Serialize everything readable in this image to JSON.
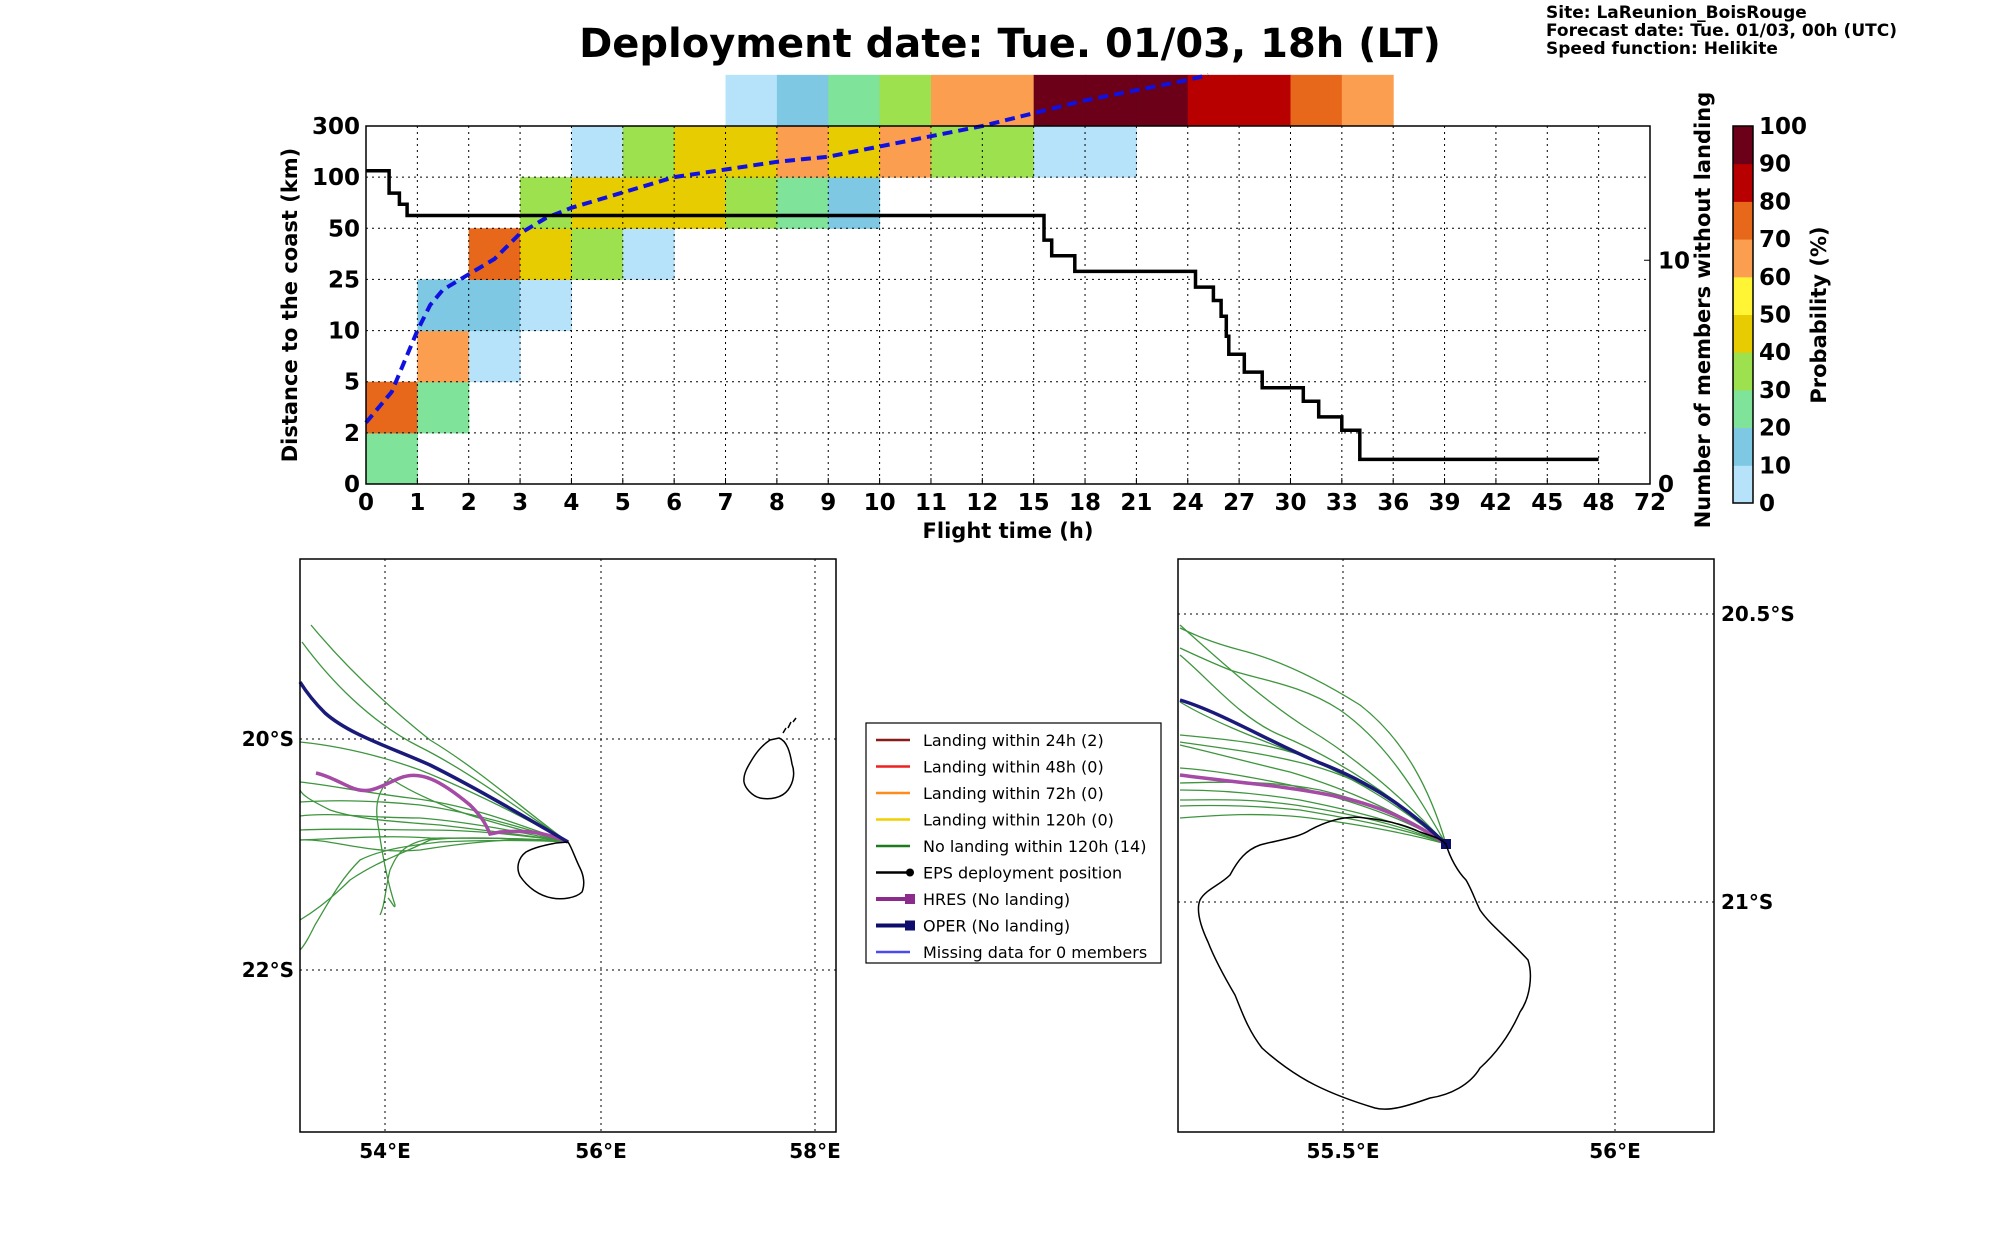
{
  "title": "Deployment date: Tue. 01/03, 18h (LT)",
  "info": [
    "Site: LaReunion_BoisRouge",
    "Forecast date: Tue. 01/03, 00h (UTC)",
    "Speed function: Helikite"
  ],
  "colors": {
    "bins": [
      "#b6e3f9",
      "#7ec8e3",
      "#7fe39a",
      "#9de24e",
      "#e6cc00",
      "#fff535",
      "#fb9e4f",
      "#e8681b",
      "#b80000",
      "#6b0018"
    ],
    "median": "#1010e0",
    "members": "#000000",
    "ens": "#2a8a2a",
    "hres": "#a54aa5",
    "oper": "#1a1a7a"
  },
  "chart_data": [
    {
      "type": "heatmap",
      "x_tick_labels": [
        "0",
        "1",
        "2",
        "3",
        "4",
        "5",
        "6",
        "7",
        "8",
        "9",
        "10",
        "11",
        "12",
        "15",
        "18",
        "21",
        "24",
        "27",
        "30",
        "33",
        "36",
        "39",
        "42",
        "45",
        "48",
        "72"
      ],
      "y_tick_labels": [
        "0",
        "2",
        "5",
        "10",
        "25",
        "50",
        "100",
        "300"
      ],
      "xlabel": "Flight time (h)",
      "ylabel": "Distance to the coast (km)",
      "y2label": "Number of members without landing",
      "y2_ticks": [
        "0",
        "10"
      ],
      "y2_range": [
        0,
        16
      ],
      "colorbar_label": "Probability (%)",
      "colorbar_ticks": [
        "0",
        "10",
        "20",
        "30",
        "40",
        "50",
        "60",
        "70",
        "80",
        "90",
        "100"
      ],
      "grid": true,
      "cells": [
        [
          0,
          0,
          2
        ],
        [
          0,
          1,
          7
        ],
        [
          1,
          1,
          2
        ],
        [
          1,
          2,
          6
        ],
        [
          1,
          3,
          1
        ],
        [
          2,
          2,
          0
        ],
        [
          2,
          3,
          1
        ],
        [
          2,
          4,
          7
        ],
        [
          3,
          3,
          0
        ],
        [
          3,
          4,
          4
        ],
        [
          3,
          5,
          3
        ],
        [
          4,
          4,
          3
        ],
        [
          4,
          5,
          4
        ],
        [
          4,
          6,
          0
        ],
        [
          5,
          4,
          0
        ],
        [
          5,
          5,
          4
        ],
        [
          5,
          6,
          3
        ],
        [
          6,
          5,
          4
        ],
        [
          6,
          6,
          4
        ],
        [
          7,
          5,
          3
        ],
        [
          7,
          6,
          4
        ],
        [
          7,
          7,
          0
        ],
        [
          8,
          5,
          2
        ],
        [
          8,
          6,
          6
        ],
        [
          8,
          7,
          1
        ],
        [
          9,
          5,
          1
        ],
        [
          9,
          6,
          4
        ],
        [
          9,
          7,
          2
        ],
        [
          10,
          6,
          6
        ],
        [
          10,
          7,
          3
        ],
        [
          11,
          6,
          3
        ],
        [
          11,
          7,
          6
        ],
        [
          12,
          6,
          3
        ],
        [
          12,
          7,
          6
        ],
        [
          13,
          6,
          0
        ],
        [
          13,
          7,
          9
        ],
        [
          14,
          6,
          0
        ],
        [
          14,
          7,
          9
        ],
        [
          15,
          7,
          9
        ],
        [
          16,
          7,
          8
        ],
        [
          17,
          7,
          8
        ],
        [
          18,
          7,
          7
        ],
        [
          19,
          7,
          6
        ]
      ],
      "median_distance_curve": {
        "x": [
          0,
          0.5,
          1,
          1.25,
          1.5,
          2,
          2.5,
          3,
          3.5,
          4,
          5,
          6,
          7,
          8,
          9,
          10,
          11,
          12,
          13,
          14,
          15,
          16,
          16.4
        ],
        "y": [
          1.2,
          1.8,
          3.0,
          3.5,
          3.8,
          4.1,
          4.4,
          4.9,
          5.2,
          5.4,
          5.7,
          6.0,
          6.15,
          6.3,
          6.4,
          6.6,
          6.8,
          7.0,
          7.25,
          7.5,
          7.7,
          7.9,
          8.0
        ]
      },
      "members_without_landing": {
        "x": [
          0,
          0.45,
          0.45,
          0.65,
          0.65,
          0.8,
          0.8,
          13.2,
          13.2,
          13.35,
          13.35,
          13.8,
          13.8,
          14.4,
          14.4,
          16.15,
          16.15,
          16.5,
          16.5,
          16.65,
          16.65,
          16.75,
          16.75,
          16.8,
          16.8,
          17.1,
          17.1,
          17.45,
          17.45,
          18.25,
          18.25,
          18.55,
          18.55,
          19.0,
          19.0,
          19.35,
          19.35,
          24.0
        ],
        "y": [
          14,
          14,
          13,
          13,
          12.5,
          12.5,
          12,
          12,
          10.9,
          10.9,
          10.2,
          10.2,
          9.5,
          9.5,
          9.5,
          9.5,
          8.8,
          8.8,
          8.2,
          8.2,
          7.5,
          7.5,
          6.6,
          6.6,
          5.8,
          5.8,
          5.0,
          5.0,
          4.3,
          4.3,
          3.7,
          3.7,
          3.0,
          3.0,
          2.4,
          2.4,
          1.1,
          1.1
        ]
      }
    }
  ],
  "maps": {
    "left": {
      "lon_ticks": [
        "54°E",
        "56°E",
        "58°E"
      ],
      "lat_ticks": [
        "20°S",
        "22°S"
      ]
    },
    "right": {
      "lon_ticks": [
        "55.5°E",
        "56°E"
      ],
      "lat_ticks": [
        "20.5°S",
        "21°S"
      ]
    }
  },
  "legend": [
    {
      "label": "Landing within 24h (2)",
      "color": "#8b1a1a",
      "marker": "none"
    },
    {
      "label": "Landing within 48h (0)",
      "color": "#ee2020",
      "marker": "none"
    },
    {
      "label": "Landing within 72h (0)",
      "color": "#ff8c1a",
      "marker": "none"
    },
    {
      "label": "Landing within 120h (0)",
      "color": "#f0d000",
      "marker": "none"
    },
    {
      "label": "No landing within 120h (14)",
      "color": "#1f7a1f",
      "marker": "none"
    },
    {
      "label": "EPS deployment position",
      "color": "#000000",
      "marker": "dot"
    },
    {
      "label": "HRES (No landing)",
      "color": "#8b2b8b",
      "marker": "square"
    },
    {
      "label": "OPER (No landing)",
      "color": "#0d0d6b",
      "marker": "square"
    },
    {
      "label": "Missing data for 0 members",
      "color": "#4a4af0",
      "marker": "none"
    }
  ]
}
